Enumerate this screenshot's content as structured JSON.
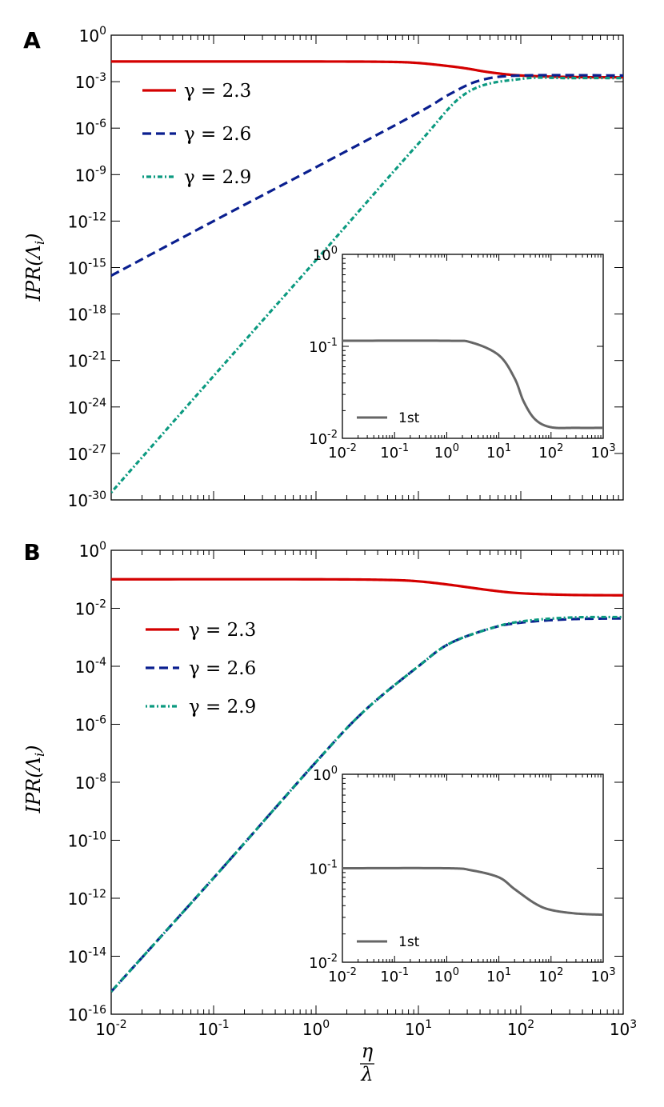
{
  "chart_data": [
    {
      "panel": "A",
      "type": "line",
      "x_scale": "log",
      "y_scale": "log",
      "xlim": [
        0.01,
        1000
      ],
      "ylim": [
        1e-30,
        1
      ],
      "xlabel_num": "η",
      "xlabel_den": "λ",
      "ylabel_main": "IPR(Λ",
      "ylabel_sub": "i",
      "ylabel_close": ")",
      "x_ticks": [
        {
          "base": "10",
          "exp": "-2"
        },
        {
          "base": "10",
          "exp": "-1"
        },
        {
          "base": "10",
          "exp": "0"
        },
        {
          "base": "10",
          "exp": "1"
        },
        {
          "base": "10",
          "exp": "2"
        },
        {
          "base": "10",
          "exp": "3"
        }
      ],
      "y_ticks": [
        {
          "base": "10",
          "exp": "0"
        },
        {
          "base": "10",
          "exp": "-3"
        },
        {
          "base": "10",
          "exp": "-6"
        },
        {
          "base": "10",
          "exp": "-9"
        },
        {
          "base": "10",
          "exp": "-12"
        },
        {
          "base": "10",
          "exp": "-15"
        },
        {
          "base": "10",
          "exp": "-18"
        },
        {
          "base": "10",
          "exp": "-21"
        },
        {
          "base": "10",
          "exp": "-24"
        },
        {
          "base": "10",
          "exp": "-27"
        },
        {
          "base": "10",
          "exp": "-30"
        }
      ],
      "legend_position": "upper-left",
      "series": [
        {
          "name": "γ = 2.3",
          "color": "#d40000",
          "dash": "solid",
          "x": [
            0.01,
            1,
            5,
            10,
            20,
            30,
            50,
            100,
            300,
            1000
          ],
          "y": [
            0.02,
            0.02,
            0.019,
            0.016,
            0.01,
            0.007,
            0.004,
            0.0025,
            0.002,
            0.0019
          ]
        },
        {
          "name": "γ = 2.6",
          "color": "#0a1f8f",
          "dash": "dashed",
          "x": [
            0.01,
            0.1,
            1,
            10,
            20,
            40,
            100,
            1000
          ],
          "y": [
            3e-16,
            1e-12,
            3e-09,
            1e-05,
            0.00015,
            0.0012,
            0.0025,
            0.0025
          ]
        },
        {
          "name": "γ = 2.9",
          "color": "#0c9a80",
          "dash": "dash-dot",
          "x": [
            0.01,
            0.1,
            1,
            10,
            30,
            100,
            300,
            1000
          ],
          "y": [
            3e-30,
            1e-22,
            3e-15,
            1e-07,
            0.0002,
            0.0015,
            0.0017,
            0.0017
          ]
        }
      ],
      "inset": {
        "type": "line",
        "xlim": [
          0.01,
          1000
        ],
        "ylim": [
          0.01,
          1
        ],
        "x_ticks": [
          {
            "base": "10",
            "exp": "-2"
          },
          {
            "base": "10",
            "exp": "-1"
          },
          {
            "base": "10",
            "exp": "0"
          },
          {
            "base": "10",
            "exp": "1"
          },
          {
            "base": "10",
            "exp": "2"
          },
          {
            "base": "10",
            "exp": "3"
          }
        ],
        "y_ticks": [
          {
            "base": "10",
            "exp": "0"
          },
          {
            "base": "10",
            "exp": "-1"
          },
          {
            "base": "10",
            "exp": "-2"
          }
        ],
        "legend_position": "lower-left",
        "series": [
          {
            "name": "1st",
            "color": "#666666",
            "x": [
              0.01,
              1,
              3,
              10,
              20,
              30,
              50,
              100,
              300,
              1000
            ],
            "y": [
              0.115,
              0.115,
              0.11,
              0.08,
              0.045,
              0.025,
              0.016,
              0.0132,
              0.013,
              0.013
            ]
          }
        ]
      }
    },
    {
      "panel": "B",
      "type": "line",
      "x_scale": "log",
      "y_scale": "log",
      "xlim": [
        0.01,
        1000
      ],
      "ylim": [
        1e-16,
        1
      ],
      "xlabel_num": "η",
      "xlabel_den": "λ",
      "ylabel_main": "IPR(Λ",
      "ylabel_sub": "i",
      "ylabel_close": ")",
      "x_ticks": [
        {
          "base": "10",
          "exp": "-2"
        },
        {
          "base": "10",
          "exp": "-1"
        },
        {
          "base": "10",
          "exp": "0"
        },
        {
          "base": "10",
          "exp": "1"
        },
        {
          "base": "10",
          "exp": "2"
        },
        {
          "base": "10",
          "exp": "3"
        }
      ],
      "y_ticks": [
        {
          "base": "10",
          "exp": "0"
        },
        {
          "base": "10",
          "exp": "-2"
        },
        {
          "base": "10",
          "exp": "-4"
        },
        {
          "base": "10",
          "exp": "-6"
        },
        {
          "base": "10",
          "exp": "-8"
        },
        {
          "base": "10",
          "exp": "-10"
        },
        {
          "base": "10",
          "exp": "-12"
        },
        {
          "base": "10",
          "exp": "-14"
        },
        {
          "base": "10",
          "exp": "-16"
        }
      ],
      "legend_position": "upper-left",
      "series": [
        {
          "name": "γ = 2.3",
          "color": "#d40000",
          "dash": "solid",
          "x": [
            0.01,
            1,
            5,
            10,
            20,
            50,
            100,
            300,
            1000
          ],
          "y": [
            0.1,
            0.1,
            0.095,
            0.085,
            0.065,
            0.042,
            0.033,
            0.029,
            0.028
          ]
        },
        {
          "name": "γ = 2.6",
          "color": "#0a1f8f",
          "dash": "dashed",
          "x": [
            0.01,
            0.1,
            1,
            3,
            10,
            20,
            50,
            100,
            300,
            1000
          ],
          "y": [
            6e-16,
            5e-12,
            5e-08,
            3e-06,
            0.0001,
            0.0006,
            0.002,
            0.0032,
            0.0042,
            0.0045
          ]
        },
        {
          "name": "γ = 2.9",
          "color": "#0c9a80",
          "dash": "dash-dot",
          "x": [
            0.01,
            0.1,
            1,
            3,
            10,
            20,
            50,
            100,
            300,
            1000
          ],
          "y": [
            6e-16,
            5e-12,
            5e-08,
            3e-06,
            0.0001,
            0.0006,
            0.002,
            0.0035,
            0.0048,
            0.005
          ]
        }
      ],
      "inset": {
        "type": "line",
        "xlim": [
          0.01,
          1000
        ],
        "ylim": [
          0.01,
          1
        ],
        "x_ticks": [
          {
            "base": "10",
            "exp": "-2"
          },
          {
            "base": "10",
            "exp": "-1"
          },
          {
            "base": "10",
            "exp": "0"
          },
          {
            "base": "10",
            "exp": "1"
          },
          {
            "base": "10",
            "exp": "2"
          },
          {
            "base": "10",
            "exp": "3"
          }
        ],
        "y_ticks": [
          {
            "base": "10",
            "exp": "0"
          },
          {
            "base": "10",
            "exp": "-1"
          },
          {
            "base": "10",
            "exp": "-2"
          }
        ],
        "legend_position": "lower-left",
        "series": [
          {
            "name": "1st",
            "color": "#666666",
            "x": [
              0.01,
              1,
              3,
              10,
              20,
              50,
              100,
              300,
              1000
            ],
            "y": [
              0.1,
              0.1,
              0.095,
              0.08,
              0.06,
              0.042,
              0.036,
              0.033,
              0.032
            ]
          }
        ]
      }
    }
  ]
}
